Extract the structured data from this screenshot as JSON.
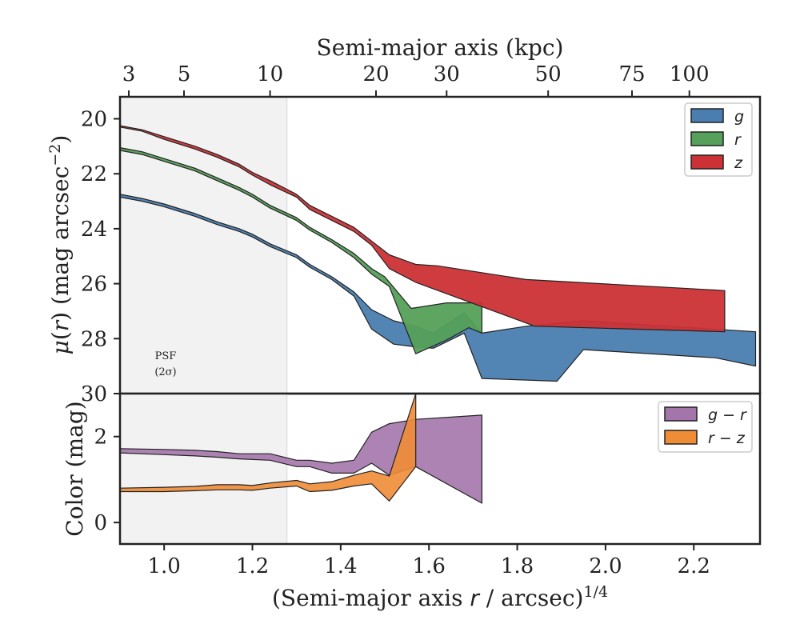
{
  "chart_data": [
    {
      "type": "area",
      "panel": "surface-brightness",
      "ylabel": "μ(r) (mag arcsec−2)",
      "ylabel_parts": {
        "mu": "μ",
        "r": "r",
        "paren": "(",
        "close": ")",
        "unit": " (mag arcsec",
        "sup": "−2",
        "unit_close": ")"
      },
      "ylim": [
        30,
        19.2
      ],
      "y_inverted": true,
      "yticks": [
        20,
        22,
        24,
        26,
        28,
        30
      ],
      "xlim": [
        0.9,
        2.35
      ],
      "legend": "top-right",
      "top_xlabel": "Semi-major axis (kpc)",
      "top_ticks": [
        {
          "label": "3",
          "x": 0.92
        },
        {
          "label": "5",
          "x": 1.045
        },
        {
          "label": "10",
          "x": 1.24
        },
        {
          "label": "20",
          "x": 1.48
        },
        {
          "label": "30",
          "x": 1.64
        },
        {
          "label": "50",
          "x": 1.87
        },
        {
          "label": "75",
          "x": 2.06
        },
        {
          "label": "100",
          "x": 2.19
        }
      ],
      "annotation": {
        "line1": "PSF",
        "line2": "(2σ)"
      },
      "series": [
        {
          "name": "g",
          "color": "#4a7eb0",
          "upper": [
            [
              0.9,
              22.75
            ],
            [
              0.95,
              22.9
            ],
            [
              1.0,
              23.1
            ],
            [
              1.07,
              23.45
            ],
            [
              1.12,
              23.75
            ],
            [
              1.17,
              24.0
            ],
            [
              1.2,
              24.2
            ],
            [
              1.24,
              24.55
            ],
            [
              1.3,
              24.95
            ],
            [
              1.33,
              25.3
            ],
            [
              1.38,
              25.75
            ],
            [
              1.43,
              26.3
            ],
            [
              1.47,
              26.95
            ],
            [
              1.52,
              27.35
            ],
            [
              1.57,
              27.55
            ],
            [
              1.61,
              27.8
            ],
            [
              1.68,
              27.05
            ],
            [
              1.72,
              27.8
            ],
            [
              1.82,
              27.55
            ],
            [
              1.95,
              27.35
            ],
            [
              2.34,
              27.75
            ]
          ],
          "lower": [
            [
              0.9,
              22.85
            ],
            [
              0.95,
              23.0
            ],
            [
              1.0,
              23.2
            ],
            [
              1.07,
              23.55
            ],
            [
              1.12,
              23.85
            ],
            [
              1.17,
              24.1
            ],
            [
              1.2,
              24.3
            ],
            [
              1.24,
              24.65
            ],
            [
              1.3,
              25.05
            ],
            [
              1.33,
              25.4
            ],
            [
              1.38,
              25.85
            ],
            [
              1.43,
              26.45
            ],
            [
              1.47,
              27.65
            ],
            [
              1.52,
              28.2
            ],
            [
              1.57,
              28.3
            ],
            [
              1.61,
              28.35
            ],
            [
              1.68,
              27.8
            ],
            [
              1.72,
              29.45
            ],
            [
              1.89,
              29.55
            ],
            [
              1.95,
              28.4
            ],
            [
              2.25,
              28.7
            ],
            [
              2.34,
              29.0
            ]
          ]
        },
        {
          "name": "r",
          "color": "#55a05a",
          "upper": [
            [
              0.9,
              21.05
            ],
            [
              0.95,
              21.2
            ],
            [
              1.0,
              21.45
            ],
            [
              1.07,
              21.8
            ],
            [
              1.12,
              22.15
            ],
            [
              1.17,
              22.5
            ],
            [
              1.2,
              22.75
            ],
            [
              1.24,
              23.15
            ],
            [
              1.3,
              23.6
            ],
            [
              1.33,
              23.95
            ],
            [
              1.38,
              24.4
            ],
            [
              1.43,
              24.9
            ],
            [
              1.47,
              25.45
            ],
            [
              1.5,
              25.75
            ],
            [
              1.56,
              26.9
            ],
            [
              1.64,
              26.7
            ],
            [
              1.72,
              26.7
            ]
          ],
          "lower": [
            [
              0.9,
              21.15
            ],
            [
              0.95,
              21.3
            ],
            [
              1.0,
              21.55
            ],
            [
              1.07,
              21.9
            ],
            [
              1.12,
              22.25
            ],
            [
              1.17,
              22.6
            ],
            [
              1.2,
              22.85
            ],
            [
              1.24,
              23.25
            ],
            [
              1.3,
              23.7
            ],
            [
              1.33,
              24.05
            ],
            [
              1.38,
              24.5
            ],
            [
              1.43,
              25.05
            ],
            [
              1.47,
              25.65
            ],
            [
              1.51,
              26.1
            ],
            [
              1.57,
              28.55
            ],
            [
              1.64,
              28.05
            ],
            [
              1.69,
              27.6
            ],
            [
              1.72,
              27.8
            ]
          ]
        },
        {
          "name": "z",
          "color": "#cc3136",
          "upper": [
            [
              0.9,
              20.25
            ],
            [
              0.95,
              20.4
            ],
            [
              1.0,
              20.65
            ],
            [
              1.07,
              21.0
            ],
            [
              1.12,
              21.3
            ],
            [
              1.17,
              21.65
            ],
            [
              1.2,
              21.95
            ],
            [
              1.24,
              22.25
            ],
            [
              1.3,
              22.75
            ],
            [
              1.33,
              23.15
            ],
            [
              1.38,
              23.55
            ],
            [
              1.43,
              23.95
            ],
            [
              1.47,
              24.45
            ],
            [
              1.51,
              24.95
            ],
            [
              1.57,
              25.3
            ],
            [
              1.62,
              25.35
            ],
            [
              1.82,
              25.85
            ],
            [
              2.27,
              26.25
            ]
          ],
          "lower": [
            [
              0.9,
              20.3
            ],
            [
              0.95,
              20.45
            ],
            [
              1.0,
              20.75
            ],
            [
              1.07,
              21.1
            ],
            [
              1.12,
              21.4
            ],
            [
              1.17,
              21.75
            ],
            [
              1.2,
              22.05
            ],
            [
              1.24,
              22.4
            ],
            [
              1.3,
              22.85
            ],
            [
              1.33,
              23.3
            ],
            [
              1.38,
              23.7
            ],
            [
              1.43,
              24.1
            ],
            [
              1.47,
              24.6
            ],
            [
              1.51,
              25.45
            ],
            [
              1.57,
              25.95
            ],
            [
              1.84,
              27.55
            ],
            [
              2.27,
              27.75
            ]
          ]
        }
      ]
    },
    {
      "type": "area",
      "panel": "color",
      "ylabel": "Color (mag)",
      "ylim": [
        -0.5,
        3.0
      ],
      "yticks": [
        0,
        2
      ],
      "xlim": [
        0.9,
        2.35
      ],
      "xlabel": "(Semi-major axis r / arcsec)1/4",
      "xlabel_parts": {
        "pre": "(Semi-major axis ",
        "var": "r",
        "post": " / arcsec)",
        "sup": "1/4"
      },
      "xticks": [
        "1.0",
        "1.2",
        "1.4",
        "1.6",
        "1.8",
        "2.0",
        "2.2"
      ],
      "legend": "top-right",
      "series": [
        {
          "name": "g − r",
          "color": "#a475ab",
          "upper": [
            [
              0.9,
              1.72
            ],
            [
              1.0,
              1.7
            ],
            [
              1.07,
              1.68
            ],
            [
              1.12,
              1.65
            ],
            [
              1.17,
              1.6
            ],
            [
              1.24,
              1.6
            ],
            [
              1.3,
              1.45
            ],
            [
              1.33,
              1.45
            ],
            [
              1.38,
              1.38
            ],
            [
              1.43,
              1.45
            ],
            [
              1.47,
              2.1
            ],
            [
              1.51,
              2.3
            ],
            [
              1.57,
              2.4
            ],
            [
              1.72,
              2.5
            ]
          ],
          "lower": [
            [
              0.9,
              1.62
            ],
            [
              1.0,
              1.58
            ],
            [
              1.07,
              1.55
            ],
            [
              1.12,
              1.52
            ],
            [
              1.17,
              1.48
            ],
            [
              1.24,
              1.45
            ],
            [
              1.3,
              1.3
            ],
            [
              1.33,
              1.3
            ],
            [
              1.38,
              1.15
            ],
            [
              1.43,
              1.15
            ],
            [
              1.47,
              1.38
            ],
            [
              1.51,
              1.1
            ],
            [
              1.57,
              1.3
            ],
            [
              1.72,
              0.45
            ]
          ]
        },
        {
          "name": "r − z",
          "color": "#ef8c36",
          "upper": [
            [
              0.9,
              0.8
            ],
            [
              1.0,
              0.82
            ],
            [
              1.07,
              0.84
            ],
            [
              1.12,
              0.88
            ],
            [
              1.17,
              0.88
            ],
            [
              1.2,
              0.86
            ],
            [
              1.24,
              0.92
            ],
            [
              1.3,
              0.98
            ],
            [
              1.33,
              0.9
            ],
            [
              1.38,
              0.95
            ],
            [
              1.43,
              1.1
            ],
            [
              1.47,
              1.2
            ],
            [
              1.51,
              1.08
            ],
            [
              1.57,
              3.0
            ]
          ],
          "lower": [
            [
              0.9,
              0.72
            ],
            [
              1.0,
              0.72
            ],
            [
              1.07,
              0.74
            ],
            [
              1.12,
              0.76
            ],
            [
              1.17,
              0.76
            ],
            [
              1.2,
              0.75
            ],
            [
              1.24,
              0.8
            ],
            [
              1.3,
              0.85
            ],
            [
              1.33,
              0.72
            ],
            [
              1.38,
              0.75
            ],
            [
              1.43,
              0.85
            ],
            [
              1.47,
              0.9
            ],
            [
              1.51,
              0.5
            ],
            [
              1.57,
              1.3
            ]
          ]
        }
      ]
    }
  ],
  "psf_region": {
    "xmin": 0.9,
    "xmax": 1.278,
    "color": "#f2f2f2"
  }
}
